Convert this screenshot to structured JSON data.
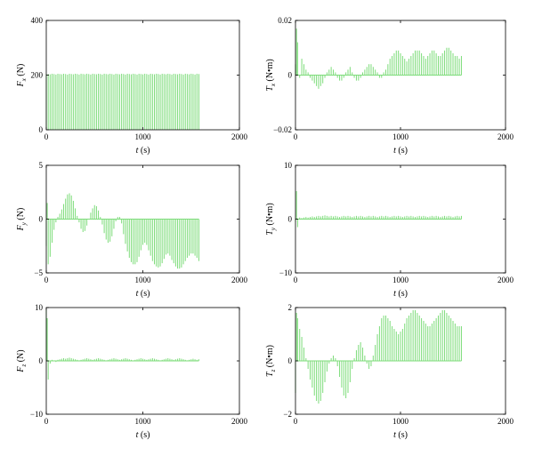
{
  "chart_data": [
    {
      "id": "Fx",
      "type": "bar",
      "xlabel": {
        "var": "t",
        "unit": " (s)"
      },
      "ylabel": {
        "var": "F",
        "sub": "x",
        "unit": " (N)"
      },
      "xlim": [
        0,
        2000
      ],
      "ylim": [
        0,
        400
      ],
      "xticks": [
        0,
        1000,
        2000
      ],
      "xticklabels": [
        "0",
        "1000",
        "2000"
      ],
      "yticks": [
        0,
        200,
        400
      ],
      "yticklabels": [
        "0",
        "200",
        "400"
      ],
      "x": [
        0,
        20,
        40,
        60,
        80,
        100,
        120,
        140,
        160,
        180,
        200,
        220,
        240,
        260,
        280,
        300,
        320,
        340,
        360,
        380,
        400,
        420,
        440,
        460,
        480,
        500,
        520,
        540,
        560,
        580,
        600,
        620,
        640,
        660,
        680,
        700,
        720,
        740,
        760,
        780,
        800,
        820,
        840,
        860,
        880,
        900,
        920,
        940,
        960,
        980,
        1000,
        1020,
        1040,
        1060,
        1080,
        1100,
        1120,
        1140,
        1160,
        1180,
        1200,
        1220,
        1240,
        1260,
        1280,
        1300,
        1320,
        1340,
        1360,
        1380,
        1400,
        1420,
        1440,
        1460,
        1480,
        1500,
        1520,
        1540,
        1560,
        1580
      ],
      "values": [
        205,
        204,
        203,
        205,
        204,
        202,
        205,
        204,
        203,
        205,
        204,
        202,
        205,
        204,
        203,
        205,
        204,
        202,
        205,
        204,
        203,
        205,
        204,
        202,
        205,
        204,
        203,
        205,
        204,
        202,
        205,
        204,
        203,
        205,
        204,
        202,
        205,
        204,
        203,
        205,
        204,
        202,
        205,
        204,
        203,
        205,
        204,
        202,
        205,
        204,
        203,
        205,
        204,
        202,
        205,
        204,
        203,
        205,
        204,
        202,
        205,
        204,
        203,
        205,
        204,
        202,
        205,
        204,
        203,
        205,
        204,
        202,
        205,
        204,
        203,
        205,
        204,
        202,
        205,
        204
      ]
    },
    {
      "id": "Tx",
      "type": "bar",
      "xlabel": {
        "var": "t",
        "unit": " (s)"
      },
      "ylabel": {
        "var": "T",
        "sub": "x",
        "unit": " (N•m)"
      },
      "xlim": [
        0,
        2000
      ],
      "ylim": [
        -0.02,
        0.02
      ],
      "xticks": [
        0,
        1000,
        2000
      ],
      "xticklabels": [
        "0",
        "1000",
        "2000"
      ],
      "yticks": [
        -0.02,
        0,
        0.02
      ],
      "yticklabels": [
        "−0.02",
        "0",
        "0.02"
      ],
      "x": [
        0,
        10,
        20,
        40,
        60,
        80,
        100,
        120,
        140,
        160,
        180,
        200,
        220,
        240,
        260,
        280,
        300,
        320,
        340,
        360,
        380,
        400,
        420,
        440,
        460,
        480,
        500,
        520,
        540,
        560,
        580,
        600,
        620,
        640,
        660,
        680,
        700,
        720,
        740,
        760,
        780,
        800,
        820,
        840,
        860,
        880,
        900,
        920,
        940,
        960,
        980,
        1000,
        1020,
        1040,
        1060,
        1080,
        1100,
        1120,
        1140,
        1160,
        1180,
        1200,
        1220,
        1240,
        1260,
        1280,
        1300,
        1320,
        1340,
        1360,
        1380,
        1400,
        1420,
        1440,
        1460,
        1480,
        1500,
        1520,
        1540,
        1560,
        1580
      ],
      "values": [
        0.004,
        0.017,
        0.012,
        -0.001,
        0.006,
        0.004,
        0.002,
        0.001,
        -0.001,
        -0.002,
        -0.003,
        -0.004,
        -0.005,
        -0.004,
        -0.003,
        -0.001,
        0.001,
        0.002,
        0.003,
        0.002,
        0.001,
        -0.001,
        -0.002,
        -0.002,
        -0.001,
        0.001,
        0.002,
        0.003,
        0.001,
        -0.001,
        -0.002,
        -0.002,
        -0.001,
        0.001,
        0.002,
        0.003,
        0.004,
        0.004,
        0.003,
        0.002,
        0.001,
        -0.001,
        -0.001,
        0.001,
        0.002,
        0.004,
        0.006,
        0.007,
        0.008,
        0.009,
        0.009,
        0.008,
        0.007,
        0.006,
        0.005,
        0.006,
        0.007,
        0.008,
        0.009,
        0.009,
        0.009,
        0.008,
        0.007,
        0.006,
        0.007,
        0.008,
        0.009,
        0.009,
        0.008,
        0.007,
        0.007,
        0.008,
        0.009,
        0.01,
        0.01,
        0.009,
        0.008,
        0.007,
        0.007,
        0.006,
        0.007
      ]
    },
    {
      "id": "Fy",
      "type": "bar",
      "xlabel": {
        "var": "t",
        "unit": " (s)"
      },
      "ylabel": {
        "var": "F",
        "sub": "y",
        "unit": " (N)"
      },
      "xlim": [
        0,
        2000
      ],
      "ylim": [
        -5,
        5
      ],
      "xticks": [
        0,
        1000,
        2000
      ],
      "xticklabels": [
        "0",
        "1000",
        "2000"
      ],
      "yticks": [
        -5,
        0,
        5
      ],
      "yticklabels": [
        "−5",
        "0",
        "5"
      ],
      "x": [
        0,
        10,
        20,
        40,
        60,
        80,
        100,
        120,
        140,
        160,
        180,
        200,
        220,
        240,
        260,
        280,
        300,
        320,
        340,
        360,
        380,
        400,
        420,
        440,
        460,
        480,
        500,
        520,
        540,
        560,
        580,
        600,
        620,
        640,
        660,
        680,
        700,
        720,
        740,
        760,
        780,
        800,
        820,
        840,
        860,
        880,
        900,
        920,
        940,
        960,
        980,
        1000,
        1020,
        1040,
        1060,
        1080,
        1100,
        1120,
        1140,
        1160,
        1180,
        1200,
        1220,
        1240,
        1260,
        1280,
        1300,
        1320,
        1340,
        1360,
        1380,
        1400,
        1420,
        1440,
        1460,
        1480,
        1500,
        1520,
        1540,
        1560,
        1580
      ],
      "values": [
        -2.5,
        1.5,
        -4.2,
        -3.5,
        -2.2,
        -1.0,
        -0.3,
        0.2,
        0.5,
        0.9,
        1.4,
        1.9,
        2.3,
        2.4,
        2.2,
        1.7,
        1.0,
        0.3,
        -0.3,
        -0.9,
        -1.2,
        -1.1,
        -0.6,
        0.0,
        0.6,
        1.0,
        1.3,
        1.2,
        0.8,
        0.2,
        -0.5,
        -1.3,
        -1.9,
        -2.2,
        -2.1,
        -1.6,
        -0.9,
        -0.2,
        0.2,
        0.2,
        -0.4,
        -1.4,
        -2.3,
        -3.0,
        -3.6,
        -4.0,
        -4.2,
        -4.2,
        -4.0,
        -3.5,
        -2.9,
        -2.4,
        -2.2,
        -2.4,
        -2.9,
        -3.4,
        -3.9,
        -4.2,
        -4.4,
        -4.5,
        -4.4,
        -4.1,
        -3.7,
        -3.3,
        -3.2,
        -3.4,
        -3.8,
        -4.1,
        -4.4,
        -4.6,
        -4.6,
        -4.5,
        -4.2,
        -3.9,
        -3.6,
        -3.4,
        -3.2,
        -3.2,
        -3.4,
        -3.6,
        -3.9
      ]
    },
    {
      "id": "Ty",
      "type": "bar",
      "xlabel": {
        "var": "t",
        "unit": " (s)"
      },
      "ylabel": {
        "var": "T",
        "sub": "y",
        "unit": " (N•m)"
      },
      "xlim": [
        0,
        2000
      ],
      "ylim": [
        -10,
        10
      ],
      "xticks": [
        0,
        1000,
        2000
      ],
      "xticklabels": [
        "0",
        "1000",
        "2000"
      ],
      "yticks": [
        -10,
        0,
        10
      ],
      "yticklabels": [
        "−10",
        "0",
        "10"
      ],
      "x": [
        0,
        10,
        20,
        40,
        60,
        80,
        100,
        120,
        140,
        160,
        180,
        200,
        220,
        240,
        260,
        280,
        300,
        320,
        340,
        360,
        380,
        400,
        420,
        440,
        460,
        480,
        500,
        520,
        540,
        560,
        580,
        600,
        620,
        640,
        660,
        680,
        700,
        720,
        740,
        760,
        780,
        800,
        820,
        840,
        860,
        880,
        900,
        920,
        940,
        960,
        980,
        1000,
        1020,
        1040,
        1060,
        1080,
        1100,
        1120,
        1140,
        1160,
        1180,
        1200,
        1220,
        1240,
        1260,
        1280,
        1300,
        1320,
        1340,
        1360,
        1380,
        1400,
        1420,
        1440,
        1460,
        1480,
        1500,
        1520,
        1540,
        1560,
        1580
      ],
      "values": [
        -0.5,
        5.2,
        -1.5,
        0.3,
        0.2,
        0.3,
        0.4,
        0.3,
        0.4,
        0.5,
        0.4,
        0.5,
        0.6,
        0.5,
        0.6,
        0.7,
        0.6,
        0.5,
        0.6,
        0.5,
        0.6,
        0.5,
        0.4,
        0.5,
        0.6,
        0.5,
        0.6,
        0.5,
        0.4,
        0.5,
        0.6,
        0.5,
        0.6,
        0.5,
        0.4,
        0.5,
        0.6,
        0.5,
        0.6,
        0.5,
        0.4,
        0.5,
        0.6,
        0.5,
        0.6,
        0.5,
        0.4,
        0.5,
        0.6,
        0.5,
        0.6,
        0.5,
        0.4,
        0.5,
        0.6,
        0.5,
        0.6,
        0.5,
        0.4,
        0.5,
        0.6,
        0.5,
        0.6,
        0.5,
        0.4,
        0.5,
        0.6,
        0.5,
        0.6,
        0.5,
        0.4,
        0.5,
        0.6,
        0.5,
        0.6,
        0.5,
        0.4,
        0.5,
        0.6,
        0.5,
        0.6
      ]
    },
    {
      "id": "Fz",
      "type": "bar",
      "xlabel": {
        "var": "t",
        "unit": " (s)"
      },
      "ylabel": {
        "var": "F",
        "sub": "z",
        "unit": " (N)"
      },
      "xlim": [
        0,
        2000
      ],
      "ylim": [
        -10,
        10
      ],
      "xticks": [
        0,
        1000,
        2000
      ],
      "xticklabels": [
        "0",
        "1000",
        "2000"
      ],
      "yticks": [
        -10,
        0,
        10
      ],
      "yticklabels": [
        "−10",
        "0",
        "10"
      ],
      "x": [
        0,
        10,
        20,
        40,
        60,
        80,
        100,
        120,
        140,
        160,
        180,
        200,
        220,
        240,
        260,
        280,
        300,
        320,
        340,
        360,
        380,
        400,
        420,
        440,
        460,
        480,
        500,
        520,
        540,
        560,
        580,
        600,
        620,
        640,
        660,
        680,
        700,
        720,
        740,
        760,
        780,
        800,
        820,
        840,
        860,
        880,
        900,
        920,
        940,
        960,
        980,
        1000,
        1020,
        1040,
        1060,
        1080,
        1100,
        1120,
        1140,
        1160,
        1180,
        1200,
        1220,
        1240,
        1260,
        1280,
        1300,
        1320,
        1340,
        1360,
        1380,
        1400,
        1420,
        1440,
        1460,
        1480,
        1500,
        1520,
        1540,
        1560,
        1580
      ],
      "values": [
        9.5,
        8.0,
        -3.5,
        -0.5,
        0.2,
        0.1,
        -0.2,
        0.2,
        0.3,
        0.4,
        0.5,
        0.4,
        0.5,
        0.6,
        0.5,
        0.4,
        0.3,
        0.2,
        0.1,
        0.2,
        0.3,
        0.4,
        0.5,
        0.4,
        0.3,
        0.2,
        0.3,
        0.4,
        0.5,
        0.4,
        0.3,
        0.2,
        0.1,
        0.2,
        0.3,
        0.4,
        0.5,
        0.4,
        0.3,
        0.2,
        0.3,
        0.4,
        0.5,
        0.4,
        0.3,
        0.2,
        0.1,
        0.2,
        0.3,
        0.4,
        0.5,
        0.4,
        0.3,
        0.2,
        0.3,
        0.4,
        0.5,
        0.4,
        0.3,
        0.2,
        0.1,
        0.2,
        0.3,
        0.4,
        0.5,
        0.4,
        0.3,
        0.2,
        0.3,
        0.4,
        0.5,
        0.4,
        0.3,
        0.2,
        0.1,
        0.2,
        0.3,
        0.4,
        0.3,
        0.2,
        0.3
      ]
    },
    {
      "id": "Tz",
      "type": "bar",
      "xlabel": {
        "var": "t",
        "unit": " (s)"
      },
      "ylabel": {
        "var": "T",
        "sub": "z",
        "unit": " (N•m)"
      },
      "xlim": [
        0,
        2000
      ],
      "ylim": [
        -2,
        2
      ],
      "xticks": [
        0,
        1000,
        2000
      ],
      "xticklabels": [
        "0",
        "1000",
        "2000"
      ],
      "yticks": [
        -2,
        0,
        2
      ],
      "yticklabels": [
        "−2",
        "0",
        "2"
      ],
      "x": [
        0,
        10,
        20,
        40,
        60,
        80,
        100,
        120,
        140,
        160,
        180,
        200,
        220,
        240,
        260,
        280,
        300,
        320,
        340,
        360,
        380,
        400,
        420,
        440,
        460,
        480,
        500,
        520,
        540,
        560,
        580,
        600,
        620,
        640,
        660,
        680,
        700,
        720,
        740,
        760,
        780,
        800,
        820,
        840,
        860,
        880,
        900,
        920,
        940,
        960,
        980,
        1000,
        1020,
        1040,
        1060,
        1080,
        1100,
        1120,
        1140,
        1160,
        1180,
        1200,
        1220,
        1240,
        1260,
        1280,
        1300,
        1320,
        1340,
        1360,
        1380,
        1400,
        1420,
        1440,
        1460,
        1480,
        1500,
        1520,
        1540,
        1560,
        1580
      ],
      "values": [
        -1.2,
        1.8,
        1.6,
        1.2,
        0.9,
        0.5,
        0.1,
        -0.3,
        -0.7,
        -1.0,
        -1.3,
        -1.5,
        -1.6,
        -1.5,
        -1.2,
        -0.8,
        -0.4,
        -0.1,
        0.1,
        0.2,
        0.1,
        -0.2,
        -0.6,
        -1.0,
        -1.3,
        -1.4,
        -1.2,
        -0.8,
        -0.3,
        0.1,
        0.4,
        0.6,
        0.7,
        0.5,
        0.2,
        -0.1,
        -0.3,
        -0.2,
        0.2,
        0.6,
        1.0,
        1.3,
        1.6,
        1.7,
        1.7,
        1.6,
        1.5,
        1.3,
        1.2,
        1.1,
        1.0,
        1.1,
        1.2,
        1.4,
        1.6,
        1.7,
        1.8,
        1.9,
        1.9,
        1.8,
        1.7,
        1.6,
        1.5,
        1.4,
        1.3,
        1.3,
        1.4,
        1.5,
        1.6,
        1.7,
        1.8,
        1.9,
        1.9,
        1.8,
        1.7,
        1.6,
        1.5,
        1.4,
        1.3,
        1.3,
        1.3
      ]
    }
  ]
}
